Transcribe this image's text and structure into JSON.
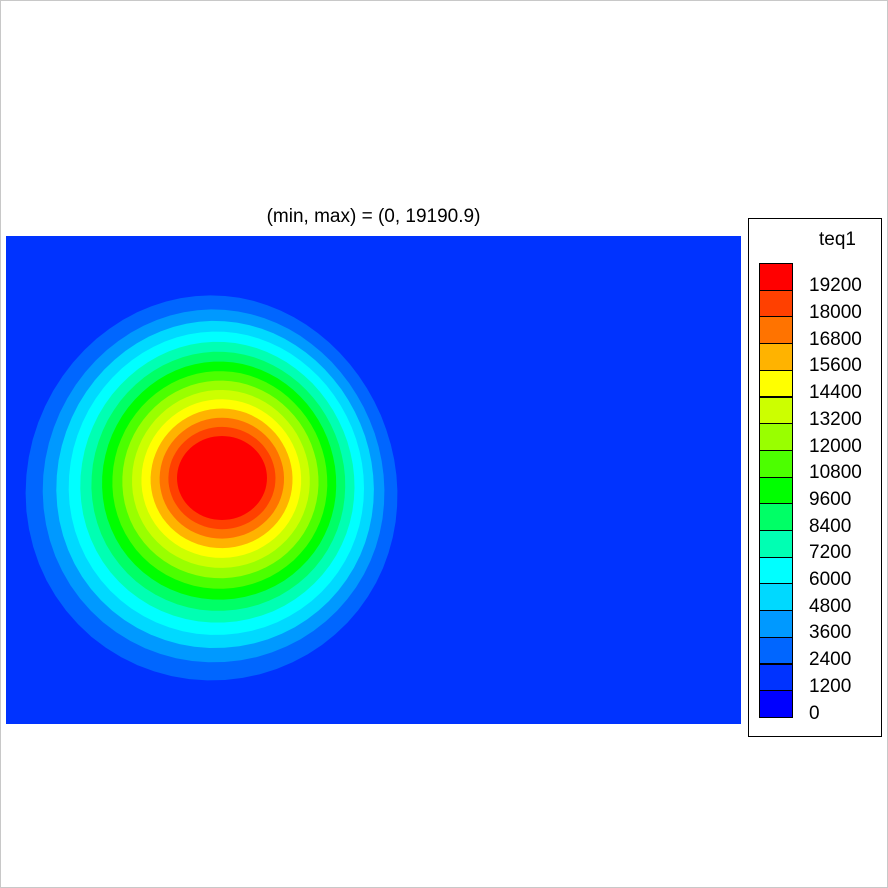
{
  "chart_data": {
    "type": "heatmap",
    "title": "(min, max) = (0, 19190.9)",
    "variable": "teq1",
    "min": 0,
    "max": 19190.9,
    "levels": [
      0,
      1200,
      2400,
      3600,
      4800,
      6000,
      7200,
      8400,
      9600,
      10800,
      12000,
      13200,
      14400,
      15600,
      16800,
      18000,
      19200
    ],
    "level_labels": [
      "0",
      "1200",
      "2400",
      "3600",
      "4800",
      "6000",
      "7200",
      "8400",
      "9600",
      "10800",
      "12000",
      "13200",
      "14400",
      "15600",
      "16800",
      "18000",
      "19200"
    ],
    "colors": [
      "#0000ff",
      "#0033ff",
      "#0066ff",
      "#0099ff",
      "#00d9ff",
      "#00ffff",
      "#00ffb3",
      "#00ff66",
      "#00ff00",
      "#4cff00",
      "#99ff00",
      "#ccff00",
      "#ffff00",
      "#ffb300",
      "#ff7300",
      "#ff4000",
      "#ff0000"
    ],
    "peak_value": 19190.9,
    "legend_position": "right"
  }
}
